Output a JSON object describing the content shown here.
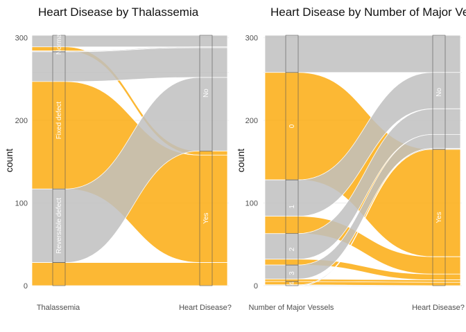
{
  "colors": {
    "yes": "#FCAB10",
    "no": "#BFBFBF",
    "grid": "#EBEBEB",
    "background": "#FFFFFF"
  },
  "chart_data": [
    {
      "type": "alluvial",
      "title": "Heart Disease by Thalassemia",
      "ylabel": "count",
      "ylim": [
        0,
        303
      ],
      "yticks": [
        0,
        100,
        200,
        300
      ],
      "grid": true,
      "axes": [
        "Thalassemia",
        "Heart Disease?"
      ],
      "left_strata": [
        "Normal",
        "Fixed defect",
        "Reversable defect",
        ""
      ],
      "right_strata": [
        "No",
        "Yes"
      ],
      "flows": [
        {
          "from": "Normal",
          "to": "No",
          "value": 14,
          "group": "no"
        },
        {
          "from": "Normal",
          "to": "Yes",
          "value": 5,
          "group": "yes"
        },
        {
          "from": "Normal",
          "to": "No",
          "value": 1,
          "group": "no"
        },
        {
          "from": "Fixed defect",
          "to": "No",
          "value": 36,
          "group": "no"
        },
        {
          "from": "Fixed defect",
          "to": "Yes",
          "value": 130,
          "group": "yes"
        },
        {
          "from": "Reversable defect",
          "to": "No",
          "value": 89,
          "group": "no"
        },
        {
          "from": "",
          "to": "Yes",
          "value": 28,
          "group": "yes"
        }
      ]
    },
    {
      "type": "alluvial",
      "title": "Heart Disease by Number of Major Vessels",
      "ylabel": "count",
      "ylim": [
        0,
        303
      ],
      "yticks": [
        0,
        100,
        200,
        300
      ],
      "grid": true,
      "axes": [
        "Number of Major Vessels",
        "Heart Disease?"
      ],
      "left_strata": [
        "",
        "0",
        "1",
        "2",
        "3",
        "4"
      ],
      "right_strata": [
        "No",
        "Yes"
      ],
      "flows": [
        {
          "from": "",
          "to": "No",
          "value": 45,
          "group": "no"
        },
        {
          "from": "0",
          "to": "Yes",
          "value": 130,
          "group": "yes"
        },
        {
          "from": "1",
          "to": "No",
          "value": 44,
          "group": "no"
        },
        {
          "from": "1",
          "to": "Yes",
          "value": 21,
          "group": "yes"
        },
        {
          "from": "2",
          "to": "No",
          "value": 31,
          "group": "no"
        },
        {
          "from": "2",
          "to": "Yes",
          "value": 7,
          "group": "yes"
        },
        {
          "from": "3",
          "to": "No",
          "value": 17,
          "group": "no"
        },
        {
          "from": "3",
          "to": "Yes",
          "value": 3,
          "group": "yes"
        },
        {
          "from": "4",
          "to": "Yes",
          "value": 4,
          "group": "yes"
        },
        {
          "from": "4",
          "to": "No",
          "value": 1,
          "group": "no"
        }
      ]
    }
  ]
}
